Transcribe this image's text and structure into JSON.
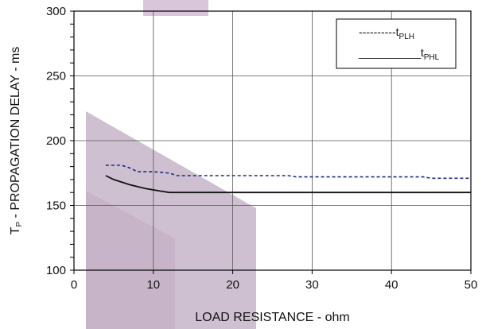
{
  "chart_data": {
    "type": "line",
    "xlabel": "LOAD RESISTANCE - ohm",
    "ylabel": {
      "main": "T",
      "sub": "P",
      "rest": " - PROPAGATION DELAY - ms"
    },
    "xlim": [
      0,
      50
    ],
    "ylim": [
      100,
      300
    ],
    "xticks": [
      0,
      10,
      20,
      30,
      40,
      50
    ],
    "yticks": [
      100,
      150,
      200,
      250,
      300
    ],
    "grid": true,
    "legend_position": "top-right",
    "series": [
      {
        "name": "tPLH",
        "legend_prefix": "----------t",
        "legend_sub": "PLH",
        "style": "dashed",
        "color": "#1a2e8a",
        "x": [
          4,
          6,
          7,
          8,
          10,
          12,
          13,
          16,
          20,
          27,
          28,
          35,
          44,
          45,
          50
        ],
        "y": [
          181,
          181,
          179,
          176,
          176,
          175,
          173,
          173,
          173,
          173,
          172,
          172,
          172,
          171,
          171
        ]
      },
      {
        "name": "tPHL",
        "legend_prefix": "__________t",
        "legend_sub": "PHL",
        "style": "solid",
        "color": "#111111",
        "x": [
          4,
          5,
          7,
          9,
          11,
          12,
          15,
          20,
          30,
          40,
          50
        ],
        "y": [
          173,
          170,
          166,
          163,
          161,
          160,
          160,
          160,
          160,
          160,
          160
        ]
      }
    ]
  }
}
